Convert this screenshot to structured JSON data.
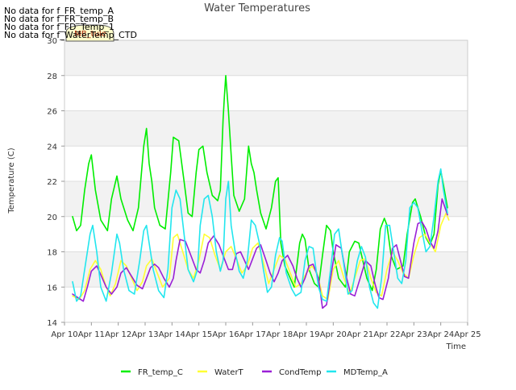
{
  "no_data_messages": [
    "No data for f_FR_temp_A",
    "No data for f_FR_temp_B",
    "No data for f_FD_Temp_1",
    "No data for f_WaterTemp_CTD"
  ],
  "tooltip_label": "MB_tule",
  "colors": {
    "FR_temp_C": "#00ee00",
    "WaterT": "#ffff33",
    "CondTemp": "#9a1fd6",
    "MDTemp_A": "#22e6ee",
    "band": "#f2f2f2",
    "grid": "#dddddd"
  },
  "chart_data": {
    "type": "line",
    "title": "Water Temperatures",
    "xlabel": "Time",
    "ylabel": "Temperature (C)",
    "ylim": [
      14,
      30
    ],
    "yticks": [
      14,
      16,
      18,
      20,
      22,
      24,
      26,
      28,
      30
    ],
    "xlim": [
      10,
      25
    ],
    "xticks": [
      10,
      11,
      12,
      13,
      14,
      15,
      16,
      17,
      18,
      19,
      20,
      21,
      22,
      23,
      24,
      25
    ],
    "xtick_labels": [
      "Apr 10",
      "Apr 11",
      "Apr 12",
      "Apr 13",
      "Apr 14",
      "Apr 15",
      "Apr 16",
      "Apr 17",
      "Apr 18",
      "Apr 19",
      "Apr 20",
      "Apr 21",
      "Apr 22",
      "Apr 23",
      "Apr 24",
      "Apr 25"
    ],
    "grid": true,
    "legend_position": "bottom",
    "series": [
      {
        "name": "FR_temp_C",
        "color": "#00ee00",
        "x": [
          10.3,
          10.45,
          10.6,
          10.75,
          10.9,
          11.0,
          11.15,
          11.35,
          11.6,
          11.75,
          11.95,
          12.1,
          12.35,
          12.55,
          12.75,
          12.95,
          13.05,
          13.15,
          13.25,
          13.35,
          13.55,
          13.75,
          13.95,
          14.05,
          14.25,
          14.45,
          14.6,
          14.75,
          14.9,
          15.0,
          15.15,
          15.3,
          15.5,
          15.7,
          15.8,
          15.9,
          15.95,
          16.0,
          16.1,
          16.2,
          16.3,
          16.5,
          16.7,
          16.85,
          16.95,
          17.05,
          17.15,
          17.3,
          17.5,
          17.7,
          17.85,
          17.95,
          18.05,
          18.2,
          18.4,
          18.55,
          18.75,
          18.85,
          18.95,
          19.1,
          19.3,
          19.45,
          19.6,
          19.75,
          19.9,
          20.0,
          20.2,
          20.45,
          20.6,
          20.8,
          20.95,
          21.1,
          21.25,
          21.45,
          21.6,
          21.75,
          21.9,
          22.0,
          22.15,
          22.35,
          22.6,
          22.75,
          22.95,
          23.05,
          23.25,
          23.45,
          23.6,
          23.75,
          23.9,
          24.0,
          24.1,
          24.25
        ],
        "y": [
          20.0,
          19.2,
          19.5,
          21.5,
          23.0,
          23.5,
          21.5,
          19.8,
          19.2,
          21.0,
          22.3,
          21.0,
          19.8,
          19.2,
          20.5,
          24.0,
          25.0,
          23.0,
          22.0,
          20.5,
          19.5,
          19.3,
          22.5,
          24.5,
          24.3,
          22.0,
          20.2,
          20.0,
          22.5,
          23.8,
          24.0,
          22.5,
          21.2,
          20.9,
          21.5,
          25.5,
          26.8,
          28.0,
          26.0,
          23.5,
          21.2,
          20.3,
          21.0,
          24.0,
          23.0,
          22.5,
          21.5,
          20.2,
          19.3,
          20.5,
          22.0,
          22.2,
          18.5,
          17.2,
          16.5,
          16.0,
          18.5,
          19.0,
          18.7,
          17.0,
          16.2,
          16.0,
          17.8,
          19.5,
          19.2,
          18.0,
          16.5,
          16.0,
          18.0,
          18.6,
          18.5,
          17.5,
          16.5,
          15.8,
          17.0,
          19.3,
          19.9,
          19.5,
          17.8,
          17.0,
          17.2,
          19.0,
          20.8,
          21.0,
          20.0,
          18.8,
          18.4,
          19.0,
          21.8,
          22.6,
          21.8,
          20.5
        ]
      },
      {
        "name": "WaterT",
        "color": "#ffff33",
        "x": [
          10.3,
          10.55,
          10.75,
          10.95,
          11.15,
          11.35,
          11.55,
          11.7,
          11.9,
          12.1,
          12.3,
          12.5,
          12.7,
          12.9,
          13.05,
          13.25,
          13.45,
          13.65,
          13.9,
          14.05,
          14.2,
          14.4,
          14.6,
          14.8,
          15.0,
          15.2,
          15.4,
          15.6,
          15.8,
          16.0,
          16.2,
          16.4,
          16.6,
          16.8,
          17.0,
          17.2,
          17.4,
          17.6,
          17.8,
          18.0,
          18.2,
          18.4,
          18.6,
          18.8,
          19.0,
          19.2,
          19.4,
          19.6,
          19.8,
          20.0,
          20.2,
          20.4,
          20.6,
          20.8,
          21.0,
          21.2,
          21.4,
          21.6,
          21.8,
          22.0,
          22.2,
          22.4,
          22.6,
          22.8,
          23.0,
          23.2,
          23.4,
          23.6,
          23.8,
          24.0,
          24.2,
          24.3
        ],
        "y": [
          15.5,
          15.3,
          15.8,
          17.0,
          17.5,
          17.0,
          16.0,
          15.5,
          16.2,
          17.5,
          17.2,
          16.5,
          15.8,
          16.3,
          17.2,
          17.6,
          16.8,
          16.0,
          16.5,
          18.8,
          19.0,
          18.0,
          17.0,
          16.5,
          17.5,
          19.0,
          18.8,
          17.8,
          17.0,
          18.0,
          18.3,
          17.6,
          16.8,
          17.2,
          18.2,
          18.5,
          17.4,
          16.2,
          17.0,
          17.8,
          17.6,
          16.8,
          16.0,
          16.2,
          16.8,
          17.2,
          16.8,
          15.5,
          15.3,
          17.0,
          17.5,
          16.5,
          15.6,
          16.5,
          17.5,
          17.6,
          16.5,
          15.7,
          15.5,
          17.0,
          18.0,
          17.5,
          16.8,
          16.5,
          17.8,
          18.8,
          19.0,
          18.5,
          18.0,
          19.5,
          20.2,
          19.8
        ]
      },
      {
        "name": "CondTemp",
        "color": "#9a1fd6",
        "x": [
          10.3,
          10.5,
          10.7,
          10.85,
          11.0,
          11.2,
          11.35,
          11.55,
          11.75,
          11.95,
          12.1,
          12.3,
          12.5,
          12.7,
          12.9,
          13.05,
          13.2,
          13.35,
          13.5,
          13.7,
          13.9,
          14.05,
          14.15,
          14.3,
          14.5,
          14.7,
          14.9,
          15.05,
          15.2,
          15.35,
          15.55,
          15.75,
          15.95,
          16.1,
          16.25,
          16.4,
          16.55,
          16.7,
          16.85,
          17.0,
          17.15,
          17.3,
          17.5,
          17.65,
          17.8,
          17.95,
          18.1,
          18.3,
          18.5,
          18.65,
          18.8,
          18.95,
          19.1,
          19.25,
          19.45,
          19.6,
          19.75,
          19.95,
          20.1,
          20.3,
          20.5,
          20.65,
          20.8,
          21.0,
          21.2,
          21.4,
          21.55,
          21.7,
          21.85,
          22.05,
          22.2,
          22.35,
          22.5,
          22.65,
          22.8,
          23.0,
          23.15,
          23.3,
          23.45,
          23.6,
          23.75,
          23.9,
          24.05,
          24.25
        ],
        "y": [
          15.6,
          15.4,
          15.2,
          16.0,
          16.9,
          17.2,
          16.7,
          16.0,
          15.6,
          16.0,
          16.8,
          17.1,
          16.6,
          16.1,
          15.9,
          16.5,
          17.1,
          17.3,
          17.1,
          16.5,
          16.0,
          16.5,
          17.5,
          18.7,
          18.6,
          17.8,
          17.0,
          16.8,
          17.5,
          18.5,
          18.9,
          18.4,
          17.6,
          17.0,
          17.0,
          17.9,
          18.0,
          17.5,
          17.0,
          17.6,
          18.2,
          18.4,
          17.5,
          16.8,
          16.3,
          16.8,
          17.5,
          17.8,
          17.2,
          16.5,
          16.0,
          16.5,
          17.2,
          17.3,
          16.5,
          14.8,
          15.0,
          17.0,
          18.4,
          18.2,
          16.5,
          15.6,
          15.5,
          16.5,
          17.5,
          17.2,
          16.2,
          15.4,
          15.3,
          16.5,
          18.2,
          18.4,
          17.5,
          16.6,
          16.5,
          18.5,
          19.6,
          19.7,
          19.3,
          18.6,
          18.2,
          19.2,
          21.0,
          20.1
        ]
      },
      {
        "name": "MDTemp_A",
        "color": "#22e6ee",
        "x": [
          10.3,
          10.45,
          10.6,
          10.8,
          10.95,
          11.05,
          11.2,
          11.35,
          11.55,
          11.75,
          11.95,
          12.05,
          12.2,
          12.4,
          12.6,
          12.8,
          12.95,
          13.05,
          13.15,
          13.3,
          13.5,
          13.7,
          13.85,
          14.0,
          14.15,
          14.3,
          14.45,
          14.6,
          14.8,
          14.95,
          15.05,
          15.2,
          15.35,
          15.5,
          15.65,
          15.8,
          15.9,
          16.0,
          16.1,
          16.2,
          16.35,
          16.5,
          16.65,
          16.8,
          16.95,
          17.1,
          17.25,
          17.4,
          17.55,
          17.7,
          17.85,
          18.0,
          18.1,
          18.25,
          18.45,
          18.6,
          18.8,
          18.95,
          19.1,
          19.25,
          19.45,
          19.6,
          19.75,
          19.9,
          20.05,
          20.2,
          20.4,
          20.55,
          20.7,
          20.9,
          21.05,
          21.2,
          21.35,
          21.5,
          21.65,
          21.8,
          21.95,
          22.1,
          22.25,
          22.4,
          22.55,
          22.7,
          22.85,
          23.0,
          23.15,
          23.3,
          23.45,
          23.6,
          23.75,
          23.9,
          24.0,
          24.1,
          24.25
        ],
        "y": [
          16.3,
          15.2,
          15.5,
          17.5,
          19.0,
          19.5,
          18.0,
          16.0,
          15.2,
          16.8,
          19.0,
          18.5,
          17.0,
          15.8,
          15.6,
          17.5,
          19.2,
          19.5,
          18.5,
          17.0,
          15.8,
          15.4,
          17.0,
          20.5,
          21.5,
          21.0,
          19.0,
          17.0,
          16.3,
          17.0,
          19.5,
          21.0,
          21.2,
          20.0,
          18.0,
          16.9,
          17.5,
          21.0,
          22.0,
          19.5,
          18.0,
          16.9,
          16.5,
          17.5,
          19.8,
          19.5,
          18.5,
          17.0,
          15.7,
          16.0,
          17.8,
          18.8,
          18.6,
          16.8,
          15.9,
          15.5,
          15.7,
          17.5,
          18.3,
          18.2,
          16.0,
          15.3,
          15.2,
          17.0,
          19.0,
          19.3,
          17.2,
          15.6,
          15.8,
          17.5,
          18.3,
          17.7,
          16.0,
          15.1,
          14.8,
          16.5,
          19.5,
          19.5,
          18.0,
          16.5,
          16.2,
          17.5,
          20.5,
          20.8,
          20.5,
          19.2,
          18.0,
          18.3,
          20.0,
          22.0,
          22.7,
          21.5,
          20.2
        ]
      }
    ]
  }
}
